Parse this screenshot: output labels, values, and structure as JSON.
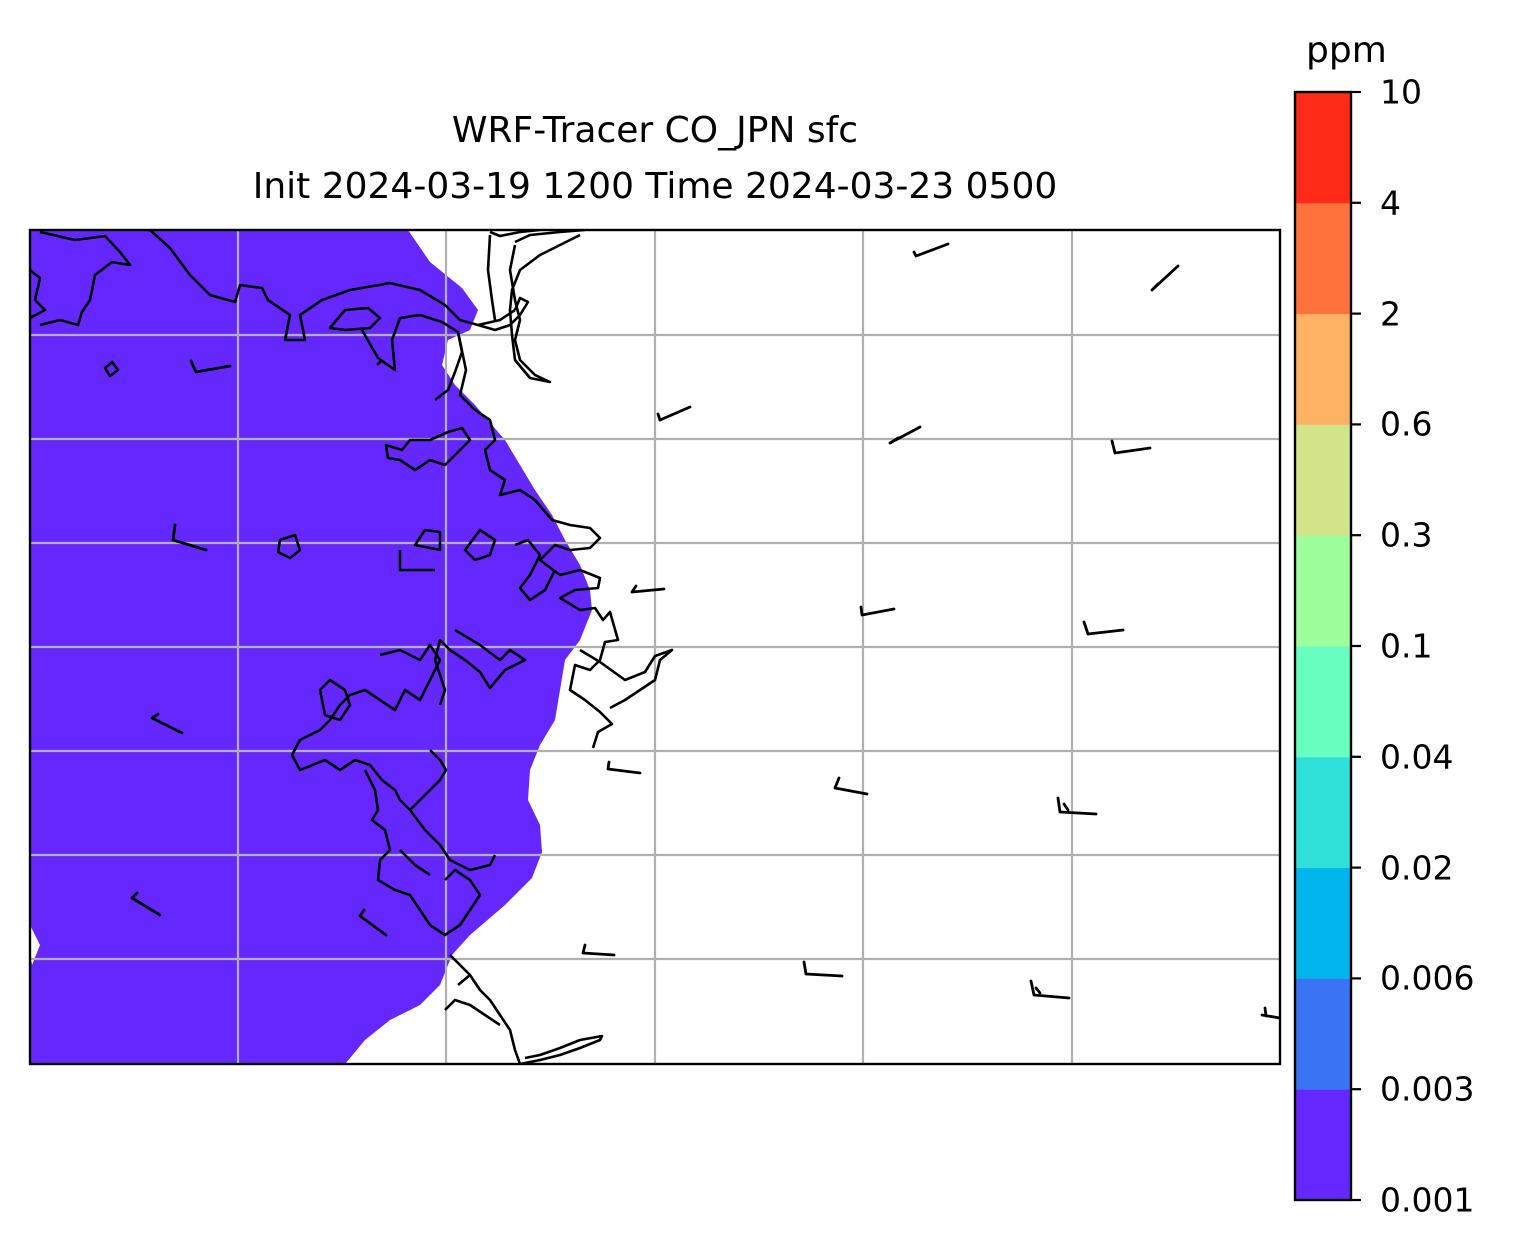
{
  "title": {
    "line1": "WRF-Tracer CO_JPN sfc",
    "line2": "Init 2024-03-19 1200 Time 2024-03-23 0500"
  },
  "colorbar": {
    "unit": "ppm",
    "tick_labels": [
      "0.001",
      "0.003",
      "0.006",
      "0.02",
      "0.04",
      "0.1",
      "0.3",
      "0.6",
      "2",
      "4",
      "10"
    ],
    "colors": [
      "#6428ff",
      "#3a74f4",
      "#00b4ec",
      "#2ee0d8",
      "#66ffbf",
      "#9cff9c",
      "#d2e48a",
      "#ffb264",
      "#ff723c",
      "#ff2a17"
    ]
  },
  "map": {
    "field_fill_color": "#6428ff",
    "field_level": "0.001–0.003 ppm",
    "gridline_color": "#b0b0b0",
    "coastline_color": "#000000",
    "wind_barbs_count": 23
  }
}
